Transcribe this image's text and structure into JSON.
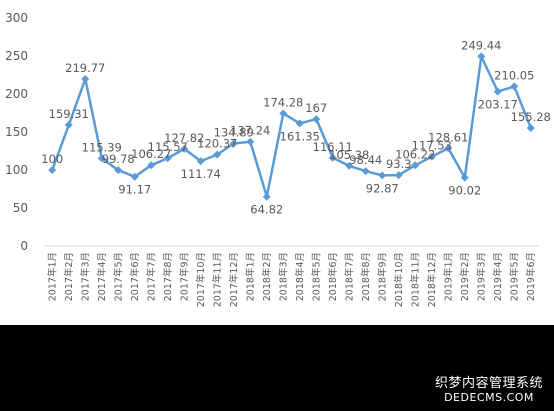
{
  "chart_data": {
    "type": "line",
    "title": "",
    "xlabel": "",
    "ylabel": "",
    "ylim": [
      0,
      300
    ],
    "yticks": [
      0,
      50,
      100,
      150,
      200,
      250,
      300
    ],
    "grid": false,
    "legend": "none",
    "categories": [
      "2017年1月",
      "2017年2月",
      "2017年3月",
      "2017年4月",
      "2017年5月",
      "2017年6月",
      "2017年7月",
      "2017年8月",
      "2017年9月",
      "2017年10月",
      "2017年11月",
      "2017年12月",
      "2018年1月",
      "2018年2月",
      "2018年3月",
      "2018年4月",
      "2018年5月",
      "2018年6月",
      "2018年7月",
      "2018年8月",
      "2018年9月",
      "2018年10月",
      "2018年11月",
      "2018年12月",
      "2019年1月",
      "2019年2月",
      "2019年3月",
      "2019年4月",
      "2019年5月",
      "2019年6月"
    ],
    "values": [
      100,
      159.31,
      219.77,
      115.39,
      99.78,
      91.17,
      106.27,
      115.57,
      127.82,
      111.74,
      120.37,
      134.89,
      137.24,
      64.82,
      174.28,
      161.35,
      167,
      116.11,
      105.38,
      98.44,
      92.87,
      93.3,
      106.22,
      117.53,
      128.61,
      90.02,
      249.44,
      203.17,
      210.05,
      155.28
    ],
    "labels": [
      "100",
      "159.31",
      "219.77",
      "115.39",
      "99.78",
      "91.17",
      "106.27",
      "115.57",
      "127.82",
      "111.74",
      "120.37",
      "134.89",
      "137.24",
      "64.82",
      "174.28",
      "161.35",
      "167",
      "116.11",
      "105.38",
      "98.44",
      "92.87",
      "93.3",
      "106.22",
      "117.53",
      "128.61",
      "90.02",
      "249.44",
      "203.17",
      "210.05",
      "155.28"
    ],
    "color": "#5B9BD5"
  },
  "watermark": {
    "line1": "织梦内容管理系统",
    "line2": "DEDECMS.COM"
  }
}
